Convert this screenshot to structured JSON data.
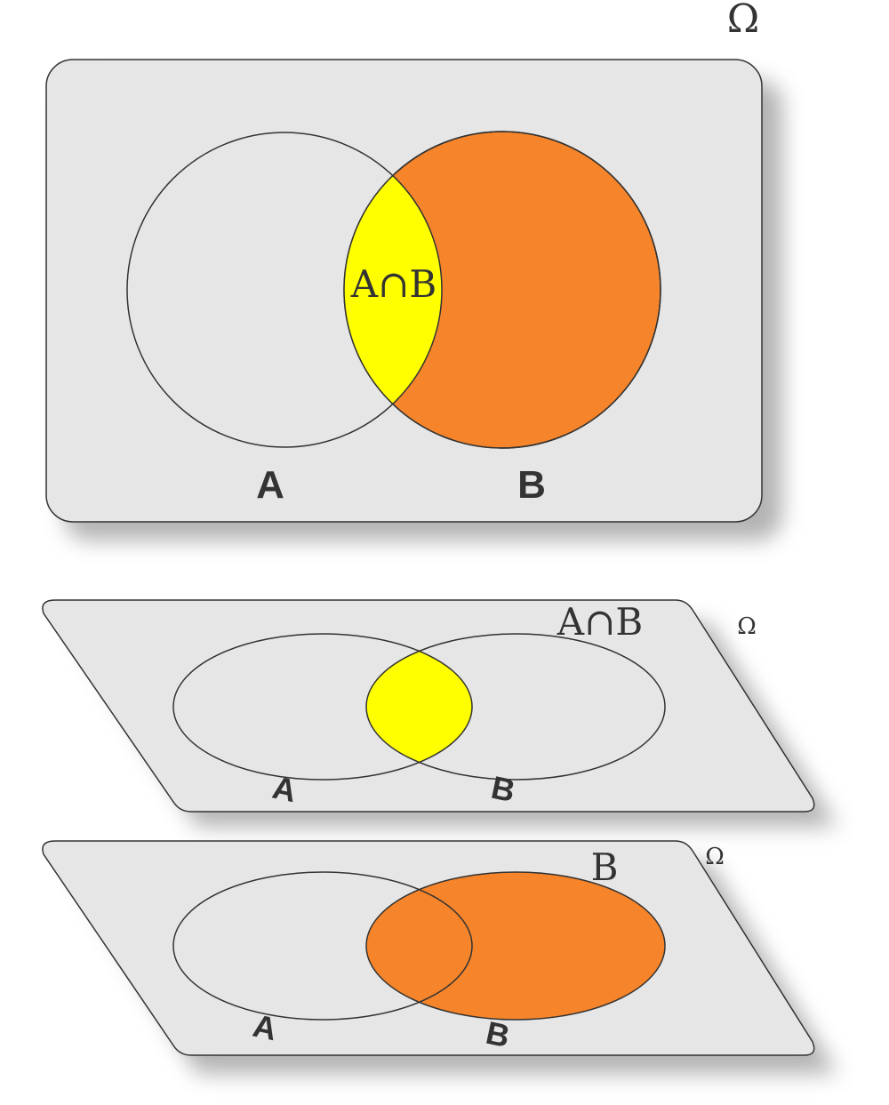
{
  "colors": {
    "panel_fill": "#e6e6e6",
    "panel_stroke": "#333333",
    "shadow": "#9a9a9a",
    "intersection": "#ffff00",
    "set_b": "#f5842a",
    "text": "#333333",
    "page_bg": "#ffffff"
  },
  "top_panel": {
    "universe_label": "Ω",
    "set_a_label": "A",
    "set_b_label": "B",
    "intersection_label": "A∩B"
  },
  "middle_panel": {
    "universe_label": "Ω",
    "title": "A∩B",
    "set_a_label": "A",
    "set_b_label": "B",
    "highlighted_region": "intersection"
  },
  "bottom_panel": {
    "universe_label": "Ω",
    "title": "B",
    "set_a_label": "A",
    "set_b_label": "B",
    "highlighted_region": "set_b"
  }
}
